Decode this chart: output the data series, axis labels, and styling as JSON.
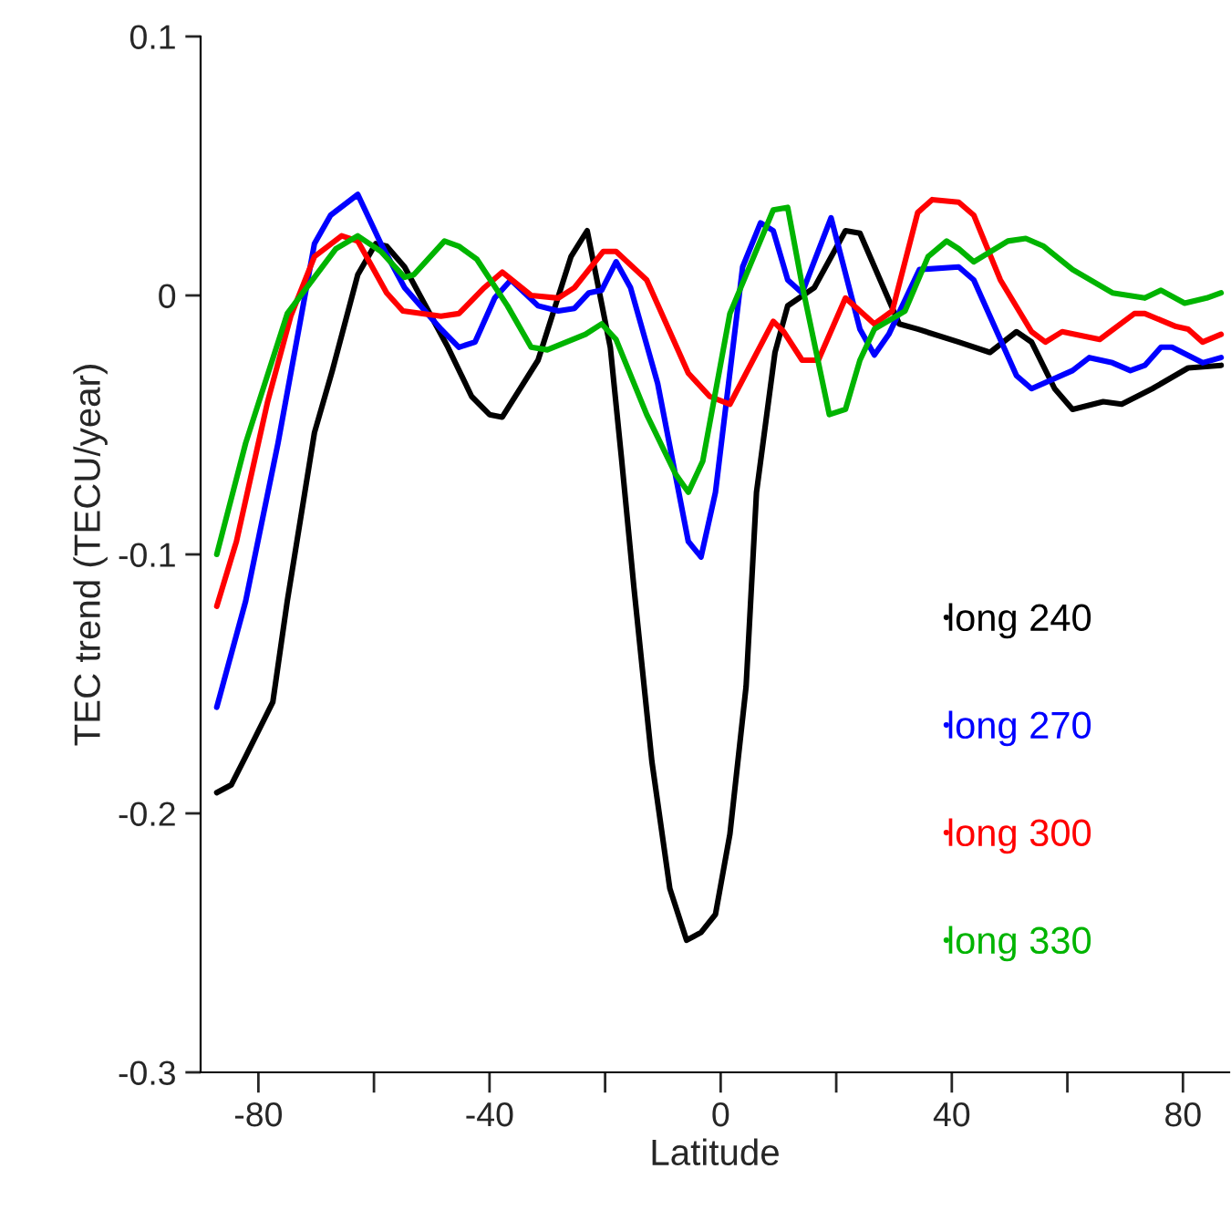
{
  "chart_data": {
    "type": "line",
    "xlabel": "Latitude",
    "ylabel": "TEC trend (TECU/year)",
    "xlim": [
      -90,
      88
    ],
    "ylim": [
      -0.3,
      0.1
    ],
    "xticks": [
      -80,
      {
        "value": -60,
        "label": null
      },
      -40,
      {
        "value": -20,
        "label": null
      },
      0,
      {
        "value": 20,
        "label": null
      },
      40,
      {
        "value": 60,
        "label": null
      },
      80
    ],
    "yticks": [
      -0.3,
      -0.2,
      -0.1,
      0,
      0.1
    ],
    "grid": false,
    "legend": "right",
    "marker": "none",
    "line_style": "solid",
    "series": [
      {
        "name": "long 240",
        "color": "#000000",
        "x": [
          -87.2,
          -84.7,
          -82.2,
          -77.5,
          -75,
          -70.3,
          -67.2,
          -62.8,
          -59.7,
          -57.8,
          -54.7,
          -47.2,
          -43.1,
          -40,
          -37.8,
          -31.6,
          -25.9,
          -23.1,
          -19.1,
          -17.2,
          -15,
          -11.9,
          -8.8,
          -5.9,
          -3.4,
          -0.9,
          1.6,
          4.4,
          6.2,
          9.4,
          11.6,
          16.2,
          21.6,
          24.1,
          30.9,
          34.1,
          41.2,
          46.6,
          51.2,
          53.8,
          57.8,
          60.9,
          66.2,
          69.4,
          74.7,
          80.9,
          86.6
        ],
        "values": [
          -0.192,
          -0.189,
          -0.178,
          -0.157,
          -0.118,
          -0.053,
          -0.029,
          0.008,
          0.02,
          0.019,
          0.011,
          -0.02,
          -0.039,
          -0.046,
          -0.047,
          -0.025,
          0.015,
          0.025,
          -0.02,
          -0.062,
          -0.113,
          -0.18,
          -0.229,
          -0.249,
          -0.246,
          -0.239,
          -0.208,
          -0.151,
          -0.076,
          -0.022,
          -0.004,
          0.003,
          0.025,
          0.024,
          -0.011,
          -0.013,
          -0.018,
          -0.022,
          -0.014,
          -0.018,
          -0.036,
          -0.044,
          -0.041,
          -0.042,
          -0.036,
          -0.028,
          -0.027
        ]
      },
      {
        "name": "long 270",
        "color": "#0000ff",
        "x": [
          -87.2,
          -82.2,
          -76.6,
          -70.3,
          -67.5,
          -62.8,
          -58.8,
          -54.7,
          -48.4,
          -45.3,
          -42.5,
          -39.1,
          -36.3,
          -31.6,
          -28.1,
          -25.3,
          -22.8,
          -20.6,
          -18.1,
          -15.6,
          -10.9,
          -5.6,
          -3.4,
          -0.9,
          3.8,
          6.9,
          9.1,
          11.6,
          14.1,
          19.1,
          24.1,
          26.6,
          29.1,
          34.4,
          41.2,
          43.8,
          51.2,
          53.8,
          60.9,
          63.8,
          67.8,
          70.9,
          73.4,
          76.2,
          78.1,
          83.4,
          86.6
        ],
        "values": [
          -0.159,
          -0.118,
          -0.057,
          0.02,
          0.031,
          0.039,
          0.02,
          0.003,
          -0.013,
          -0.02,
          -0.018,
          -0.001,
          0.006,
          -0.004,
          -0.006,
          -0.005,
          0.001,
          0.002,
          0.013,
          0.003,
          -0.034,
          -0.095,
          -0.101,
          -0.076,
          0.011,
          0.028,
          0.025,
          0.006,
          0.001,
          0.03,
          -0.013,
          -0.023,
          -0.015,
          0.01,
          0.011,
          0.006,
          -0.031,
          -0.036,
          -0.029,
          -0.024,
          -0.026,
          -0.029,
          -0.027,
          -0.02,
          -0.02,
          -0.026,
          -0.024
        ]
      },
      {
        "name": "long 300",
        "color": "#ff0000",
        "x": [
          -87.2,
          -83.8,
          -78.4,
          -74.4,
          -70.3,
          -65.6,
          -62.8,
          -57.8,
          -55,
          -48.4,
          -45.3,
          -40.9,
          -37.8,
          -32.8,
          -28.1,
          -25.3,
          -20.3,
          -18.1,
          -12.8,
          -5.6,
          -1.9,
          1.6,
          9.1,
          10.9,
          14.1,
          16.9,
          21.6,
          26.6,
          29.7,
          34.1,
          36.6,
          41.2,
          43.8,
          48.4,
          53.8,
          56.2,
          59.1,
          65.6,
          71.6,
          73.4,
          78.8,
          80.9,
          83.4,
          86.6
        ],
        "values": [
          -0.12,
          -0.095,
          -0.041,
          -0.008,
          0.015,
          0.023,
          0.021,
          0.001,
          -0.006,
          -0.008,
          -0.007,
          0.003,
          0.009,
          0.0,
          -0.001,
          0.003,
          0.017,
          0.017,
          0.006,
          -0.03,
          -0.039,
          -0.042,
          -0.01,
          -0.014,
          -0.025,
          -0.025,
          -0.001,
          -0.011,
          -0.006,
          0.032,
          0.037,
          0.036,
          0.031,
          0.006,
          -0.014,
          -0.018,
          -0.014,
          -0.017,
          -0.007,
          -0.007,
          -0.012,
          -0.013,
          -0.018,
          -0.015
        ]
      },
      {
        "name": "long 330",
        "color": "#00b400",
        "x": [
          -87.2,
          -82.2,
          -75,
          -70.3,
          -66.6,
          -62.8,
          -58.8,
          -54.7,
          -53.1,
          -47.8,
          -45.3,
          -42.2,
          -36.9,
          -32.8,
          -30,
          -23.4,
          -20.6,
          -18.1,
          -12.8,
          -7.8,
          -5.6,
          -3.1,
          1.6,
          9.1,
          11.6,
          14.1,
          18.8,
          21.6,
          24.1,
          26.6,
          31.9,
          35.9,
          39.1,
          41.2,
          43.8,
          49.7,
          52.8,
          55.9,
          60.9,
          67.8,
          73.4,
          76.2,
          80.3,
          84.1,
          86.6
        ],
        "values": [
          -0.1,
          -0.057,
          -0.007,
          0.007,
          0.018,
          0.023,
          0.017,
          0.007,
          0.008,
          0.021,
          0.019,
          0.014,
          -0.004,
          -0.02,
          -0.021,
          -0.015,
          -0.011,
          -0.017,
          -0.046,
          -0.069,
          -0.076,
          -0.064,
          -0.007,
          0.033,
          0.034,
          0.004,
          -0.046,
          -0.044,
          -0.025,
          -0.013,
          -0.006,
          0.015,
          0.021,
          0.018,
          0.013,
          0.021,
          0.022,
          0.019,
          0.01,
          0.001,
          -0.001,
          0.002,
          -0.003,
          -0.001,
          0.001
        ]
      }
    ]
  }
}
